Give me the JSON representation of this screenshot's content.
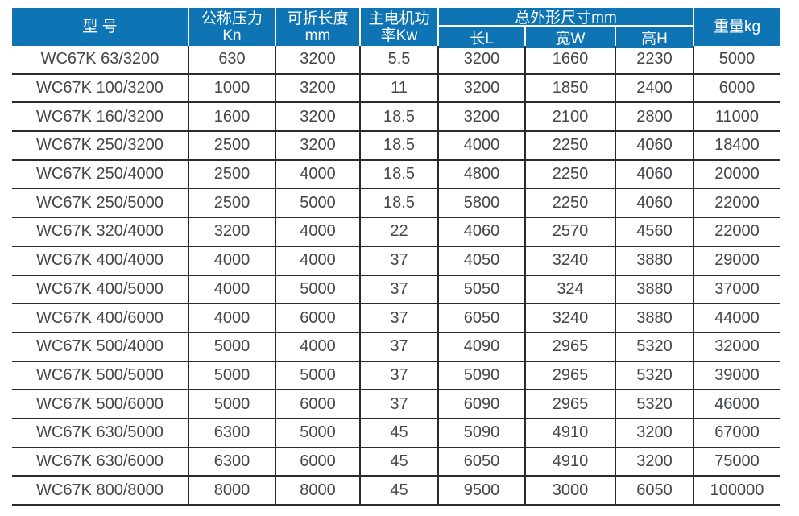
{
  "table": {
    "header": {
      "model": "型 号",
      "pressure_line1": "公称压力",
      "pressure_line2": "Kn",
      "fold_length_line1": "可折长度",
      "fold_length_line2": "mm",
      "motor_power_line1": "主电机功",
      "motor_power_line2": "率Kw",
      "dimensions_group": "总外形尺寸mm",
      "dim_length": "长L",
      "dim_width": "宽W",
      "dim_height": "高H",
      "weight": "重量kg"
    },
    "rows": [
      [
        "WC67K 63/3200",
        "630",
        "3200",
        "5.5",
        "3200",
        "1660",
        "2230",
        "5000"
      ],
      [
        "WC67K 100/3200",
        "1000",
        "3200",
        "11",
        "3200",
        "1850",
        "2400",
        "6000"
      ],
      [
        "WC67K 160/3200",
        "1600",
        "3200",
        "18.5",
        "3200",
        "2100",
        "2800",
        "11000"
      ],
      [
        "WC67K 250/3200",
        "2500",
        "3200",
        "18.5",
        "4000",
        "2250",
        "4060",
        "18400"
      ],
      [
        "WC67K 250/4000",
        "2500",
        "4000",
        "18.5",
        "4800",
        "2250",
        "4060",
        "20000"
      ],
      [
        "WC67K 250/5000",
        "2500",
        "5000",
        "18.5",
        "5800",
        "2250",
        "4060",
        "22000"
      ],
      [
        "WC67K 320/4000",
        "3200",
        "4000",
        "22",
        "4060",
        "2570",
        "4560",
        "22000"
      ],
      [
        "WC67K 400/4000",
        "4000",
        "4000",
        "37",
        "4050",
        "3240",
        "3880",
        "29000"
      ],
      [
        "WC67K 400/5000",
        "4000",
        "5000",
        "37",
        "5050",
        "324",
        "3880",
        "37000"
      ],
      [
        "WC67K 400/6000",
        "4000",
        "6000",
        "37",
        "6050",
        "3240",
        "3880",
        "44000"
      ],
      [
        "WC67K 500/4000",
        "5000",
        "4000",
        "37",
        "4090",
        "2965",
        "5320",
        "32000"
      ],
      [
        "WC67K 500/5000",
        "5000",
        "5000",
        "37",
        "5090",
        "2965",
        "5320",
        "39000"
      ],
      [
        "WC67K 500/6000",
        "5000",
        "6000",
        "37",
        "6090",
        "2965",
        "5320",
        "46000"
      ],
      [
        "WC67K 630/5000",
        "6300",
        "5000",
        "45",
        "5090",
        "4910",
        "3200",
        "67000"
      ],
      [
        "WC67K 630/6000",
        "6300",
        "6000",
        "45",
        "6050",
        "4910",
        "3200",
        "75000"
      ],
      [
        "WC67K 800/8000",
        "8000",
        "8000",
        "45",
        "9500",
        "3000",
        "6050",
        "100000"
      ]
    ]
  },
  "colors": {
    "header_bg": "#0e74b4",
    "header_text": "#ffffff",
    "body_text": "#43464a",
    "grid_line": "#2b2b2c"
  }
}
